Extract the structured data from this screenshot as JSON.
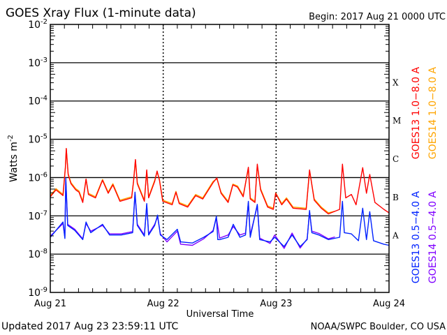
{
  "chart_data": {
    "type": "line",
    "title": "GOES Xray Flux (1-minute data)",
    "begin_label": "Begin:  2017 Aug 21 0000 UTC",
    "xlabel": "Universal Time",
    "ylabel": "Watts m",
    "ylabel_sup": "-2",
    "y_scale": "log",
    "ylim_log10": [
      -9,
      -2
    ],
    "xlim_hours": [
      0,
      72
    ],
    "x_ticks": [
      {
        "hour": 0,
        "label": "Aug 21"
      },
      {
        "hour": 24,
        "label": "Aug 22"
      },
      {
        "hour": 48,
        "label": "Aug 23"
      },
      {
        "hour": 72,
        "label": "Aug 24"
      }
    ],
    "y_ticks": [
      {
        "exp": -2,
        "base": "10",
        "sup": "-2"
      },
      {
        "exp": -3,
        "base": "10",
        "sup": "-3"
      },
      {
        "exp": -4,
        "base": "10",
        "sup": "-4"
      },
      {
        "exp": -5,
        "base": "10",
        "sup": "-5"
      },
      {
        "exp": -6,
        "base": "10",
        "sup": "-6"
      },
      {
        "exp": -7,
        "base": "10",
        "sup": "-7"
      },
      {
        "exp": -8,
        "base": "10",
        "sup": "-8"
      },
      {
        "exp": -9,
        "base": "10",
        "sup": "-9"
      }
    ],
    "flare_classes": [
      {
        "label": "X",
        "exp": -4
      },
      {
        "label": "M",
        "exp": -5
      },
      {
        "label": "C",
        "exp": -6
      },
      {
        "label": "B",
        "exp": -7
      },
      {
        "label": "A",
        "exp": -8
      }
    ],
    "grid_lines_log10": [
      -3,
      -4,
      -5,
      -6,
      -7,
      -8
    ],
    "legend_position": "right (rotated)",
    "series": [
      {
        "name": "GOES14 1.0−8.0 A",
        "color": "#ffa500",
        "x_hours": [
          0,
          1.2,
          2.7,
          3.2,
          3.4,
          3.8,
          4.4,
          5.4,
          6.1,
          6.9,
          7.6,
          8.1,
          9.6,
          11.1,
          12.3,
          13.3,
          14.8,
          17.3,
          17.7,
          18.1,
          18.5,
          20.0,
          20.5,
          20.9,
          22.2,
          22.7,
          23.2,
          23.9,
          25.9,
          26.7,
          27.4,
          29.2,
          30.9,
          32.4,
          34.6,
          35.4,
          36.3,
          37.8,
          38.8,
          39.8,
          41.0,
          42.1,
          42.5,
          43.5,
          44.0,
          44.7,
          46.2,
          47.4,
          47.9,
          49.2,
          50.2,
          51.6,
          54.4,
          55.1,
          56.1,
          57.6,
          59.1,
          60.5
        ],
        "log10_flux": [
          -6.47,
          -6.29,
          -6.44,
          -5.74,
          -5.25,
          -5.9,
          -6.13,
          -6.29,
          -6.35,
          -6.62,
          -6.04,
          -6.41,
          -6.5,
          -6.05,
          -6.38,
          -6.16,
          -6.59,
          -6.5,
          -6.1,
          -5.55,
          -6.13,
          -6.59,
          -5.82,
          -6.5,
          -6.07,
          -5.85,
          -6.05,
          -6.59,
          -6.68,
          -6.36,
          -6.65,
          -6.74,
          -6.44,
          -6.53,
          -6.1,
          -6.03,
          -6.38,
          -6.62,
          -6.17,
          -6.22,
          -6.47,
          -5.76,
          -6.53,
          -6.62,
          -5.68,
          -6.29,
          -6.74,
          -6.8,
          -6.4,
          -6.68,
          -6.53,
          -6.77,
          -6.8,
          -5.82,
          -6.56,
          -6.77,
          -6.92,
          -6.88
        ]
      },
      {
        "name": "GOES13 1.0−8.0 A",
        "color": "#ff0000",
        "x_hours": [
          0,
          1.2,
          2.7,
          3.2,
          3.4,
          3.8,
          4.4,
          5.4,
          6.1,
          6.9,
          7.6,
          8.1,
          9.6,
          11.1,
          12.3,
          13.3,
          14.8,
          17.3,
          17.7,
          18.1,
          18.5,
          20.0,
          20.5,
          20.9,
          22.2,
          22.7,
          23.2,
          23.9,
          25.9,
          26.7,
          27.4,
          29.2,
          30.9,
          32.4,
          34.6,
          35.4,
          36.3,
          37.8,
          38.8,
          39.8,
          41.0,
          42.1,
          42.5,
          43.5,
          44.0,
          44.7,
          46.2,
          47.4,
          47.9,
          49.2,
          50.2,
          51.6,
          54.4,
          55.1,
          56.1,
          57.6,
          59.1,
          61.5,
          62.1,
          62.8,
          64.0,
          65.0,
          66.4,
          67.2,
          67.9,
          69.0,
          70.9,
          72
        ],
        "log10_flux": [
          -6.5,
          -6.32,
          -6.47,
          -5.74,
          -5.24,
          -5.92,
          -6.16,
          -6.32,
          -6.38,
          -6.65,
          -6.04,
          -6.44,
          -6.53,
          -6.07,
          -6.41,
          -6.19,
          -6.62,
          -6.53,
          -6.1,
          -5.53,
          -6.16,
          -6.62,
          -5.8,
          -6.53,
          -6.1,
          -5.83,
          -6.07,
          -6.62,
          -6.71,
          -6.38,
          -6.68,
          -6.77,
          -6.47,
          -6.56,
          -6.13,
          -6.01,
          -6.41,
          -6.65,
          -6.19,
          -6.25,
          -6.5,
          -5.73,
          -6.56,
          -6.65,
          -5.65,
          -6.32,
          -6.77,
          -6.83,
          -6.41,
          -6.71,
          -6.56,
          -6.8,
          -6.83,
          -5.8,
          -6.59,
          -6.8,
          -6.95,
          -6.83,
          -5.65,
          -6.53,
          -6.44,
          -6.71,
          -5.74,
          -6.41,
          -5.92,
          -6.65,
          -6.83,
          -6.92
        ]
      },
      {
        "name": "GOES14 0.5−4.0 A",
        "color": "#7f00ff",
        "x_hours": [
          0,
          2.7,
          3.1,
          3.3,
          3.7,
          5.2,
          6.9,
          7.6,
          8.6,
          11.1,
          12.6,
          15.1,
          17.5,
          18.0,
          18.5,
          20.0,
          20.5,
          20.9,
          22.2,
          22.8,
          23.4,
          24.8,
          27.0,
          27.7,
          30.2,
          32.6,
          34.6,
          35.3,
          36.0,
          37.8,
          38.9,
          40.3,
          41.5,
          42.1,
          42.5,
          44.0,
          44.5,
          46.7,
          47.7,
          49.7,
          51.4,
          53.1,
          54.6,
          55.1,
          55.6,
          57.1,
          59.1,
          60.5
        ],
        "log10_flux": [
          -7.53,
          -7.2,
          -7.56,
          -6.05,
          -7.22,
          -7.35,
          -7.6,
          -7.2,
          -7.4,
          -7.25,
          -7.47,
          -7.47,
          -7.41,
          -6.42,
          -7.22,
          -7.5,
          -6.72,
          -7.47,
          -7.22,
          -7.02,
          -7.47,
          -7.68,
          -7.4,
          -7.74,
          -7.77,
          -7.6,
          -7.38,
          -7.05,
          -7.58,
          -7.5,
          -7.28,
          -7.5,
          -7.45,
          -6.66,
          -7.5,
          -6.74,
          -7.58,
          -7.72,
          -7.5,
          -7.85,
          -7.45,
          -7.84,
          -7.6,
          -6.9,
          -7.4,
          -7.46,
          -7.6,
          -7.55
        ]
      },
      {
        "name": "GOES13 0.5−4.0 A",
        "color": "#0022ff",
        "x_hours": [
          0,
          2.7,
          3.1,
          3.3,
          3.7,
          5.2,
          6.9,
          7.6,
          8.6,
          11.1,
          12.6,
          15.1,
          17.5,
          18.0,
          18.5,
          20.0,
          20.5,
          20.9,
          22.2,
          22.8,
          23.4,
          24.8,
          27.0,
          27.7,
          30.2,
          32.6,
          34.6,
          35.3,
          35.6,
          36.0,
          37.8,
          38.9,
          40.3,
          41.5,
          42.1,
          42.5,
          44.0,
          44.5,
          46.7,
          47.7,
          49.7,
          51.4,
          53.1,
          54.6,
          55.1,
          55.6,
          57.1,
          59.1,
          61.5,
          62.1,
          62.5,
          64.0,
          65.5,
          66.4,
          67.2,
          67.9,
          68.7,
          70.9,
          72
        ],
        "log10_flux": [
          -7.56,
          -7.16,
          -7.59,
          -6.01,
          -7.25,
          -7.38,
          -7.62,
          -7.16,
          -7.44,
          -7.22,
          -7.5,
          -7.5,
          -7.44,
          -6.38,
          -7.25,
          -7.53,
          -6.68,
          -7.5,
          -7.25,
          -6.98,
          -7.5,
          -7.62,
          -7.35,
          -7.68,
          -7.71,
          -7.56,
          -7.41,
          -7.01,
          -7.62,
          -7.62,
          -7.56,
          -7.22,
          -7.56,
          -7.5,
          -6.62,
          -7.56,
          -6.7,
          -7.62,
          -7.68,
          -7.56,
          -7.8,
          -7.5,
          -7.8,
          -7.62,
          -6.86,
          -7.44,
          -7.5,
          -7.62,
          -7.56,
          -6.62,
          -7.44,
          -7.47,
          -7.65,
          -6.8,
          -7.62,
          -6.89,
          -7.65,
          -7.74,
          -7.77
        ]
      }
    ],
    "legend": [
      {
        "label": "GOES13 1.0−8.0 A",
        "color": "#ff0000"
      },
      {
        "label": "GOES14 1.0−8.0 A",
        "color": "#ffa500"
      },
      {
        "label": "GOES13 0.5−4.0 A",
        "color": "#0022ff"
      },
      {
        "label": "GOES14 0.5−4.0 A",
        "color": "#7f00ff"
      }
    ]
  },
  "footer": {
    "updated": "Updated 2017 Aug 23 23:59:11 UTC",
    "credit": "NOAA/SWPC Boulder, CO USA"
  }
}
